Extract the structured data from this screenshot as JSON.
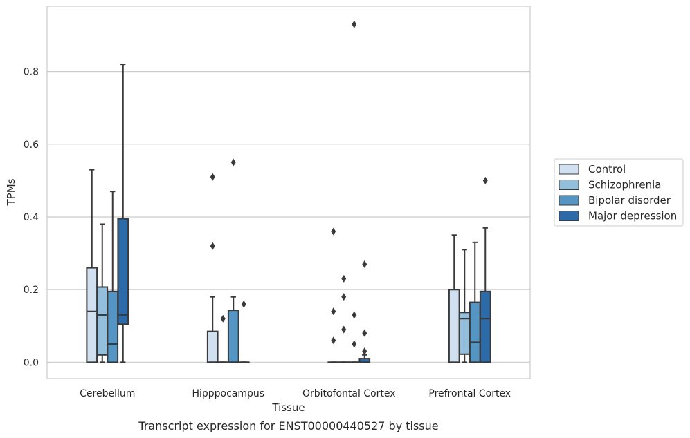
{
  "chart_data": {
    "type": "boxplot",
    "xlabel": "Tissue",
    "ylabel": "TPMs",
    "caption": "Transcript expression for ENST00000440527 by tissue",
    "ylim": [
      -0.045,
      0.98
    ],
    "yticks": [
      "0.0",
      "0.2",
      "0.4",
      "0.6",
      "0.8"
    ],
    "grid": "horizontal",
    "legend_position": "right",
    "categories": [
      "Cerebellum",
      "Hipppocampus",
      "Orbitofontal Cortex",
      "Prefrontal Cortex"
    ],
    "series": [
      {
        "name": "Control",
        "color": "#d0e0f0",
        "boxes": [
          {
            "whislo": 0.0,
            "q1": 0.0,
            "med": 0.14,
            "q3": 0.26,
            "whishi": 0.53,
            "fliers": []
          },
          {
            "whislo": 0.0,
            "q1": 0.0,
            "med": 0.0,
            "q3": 0.085,
            "whishi": 0.18,
            "fliers": [
              0.32,
              0.51
            ]
          },
          {
            "whislo": 0.0,
            "q1": 0.0,
            "med": 0.0,
            "q3": 0.0,
            "whishi": 0.0,
            "fliers": [
              0.06,
              0.14,
              0.36
            ]
          },
          {
            "whislo": 0.0,
            "q1": 0.0,
            "med": 0.2,
            "q3": 0.2,
            "whishi": 0.35,
            "fliers": []
          }
        ]
      },
      {
        "name": "Schizophrenia",
        "color": "#94bfdc",
        "boxes": [
          {
            "whislo": 0.0,
            "q1": 0.02,
            "med": 0.13,
            "q3": 0.207,
            "whishi": 0.38,
            "fliers": []
          },
          {
            "whislo": 0.0,
            "q1": 0.0,
            "med": 0.0,
            "q3": 0.0,
            "whishi": 0.0,
            "fliers": [
              0.12
            ]
          },
          {
            "whislo": 0.0,
            "q1": 0.0,
            "med": 0.0,
            "q3": 0.0,
            "whishi": 0.0,
            "fliers": [
              0.09,
              0.18,
              0.23
            ]
          },
          {
            "whislo": 0.0,
            "q1": 0.022,
            "med": 0.12,
            "q3": 0.137,
            "whishi": 0.31,
            "fliers": []
          }
        ]
      },
      {
        "name": "Bipolar disorder",
        "color": "#5495c4",
        "boxes": [
          {
            "whislo": 0.0,
            "q1": 0.0,
            "med": 0.05,
            "q3": 0.195,
            "whishi": 0.47,
            "fliers": []
          },
          {
            "whislo": 0.0,
            "q1": 0.0,
            "med": 0.0,
            "q3": 0.143,
            "whishi": 0.18,
            "fliers": [
              0.55
            ]
          },
          {
            "whislo": 0.0,
            "q1": 0.0,
            "med": 0.0,
            "q3": 0.0,
            "whishi": 0.0,
            "fliers": [
              0.05,
              0.13,
              0.93
            ]
          },
          {
            "whislo": 0.0,
            "q1": 0.0,
            "med": 0.055,
            "q3": 0.165,
            "whishi": 0.33,
            "fliers": []
          }
        ]
      },
      {
        "name": "Major depression",
        "color": "#2c6aa8",
        "boxes": [
          {
            "whislo": 0.0,
            "q1": 0.105,
            "med": 0.13,
            "q3": 0.395,
            "whishi": 0.82,
            "fliers": []
          },
          {
            "whislo": 0.0,
            "q1": 0.0,
            "med": 0.0,
            "q3": 0.0,
            "whishi": 0.0,
            "fliers": [
              0.16
            ]
          },
          {
            "whislo": 0.0,
            "q1": 0.0,
            "med": 0.0,
            "q3": 0.01,
            "whishi": 0.02,
            "fliers": [
              0.03,
              0.08,
              0.27
            ]
          },
          {
            "whislo": 0.0,
            "q1": 0.0,
            "med": 0.12,
            "q3": 0.195,
            "whishi": 0.37,
            "fliers": [
              0.5
            ]
          }
        ]
      }
    ]
  }
}
